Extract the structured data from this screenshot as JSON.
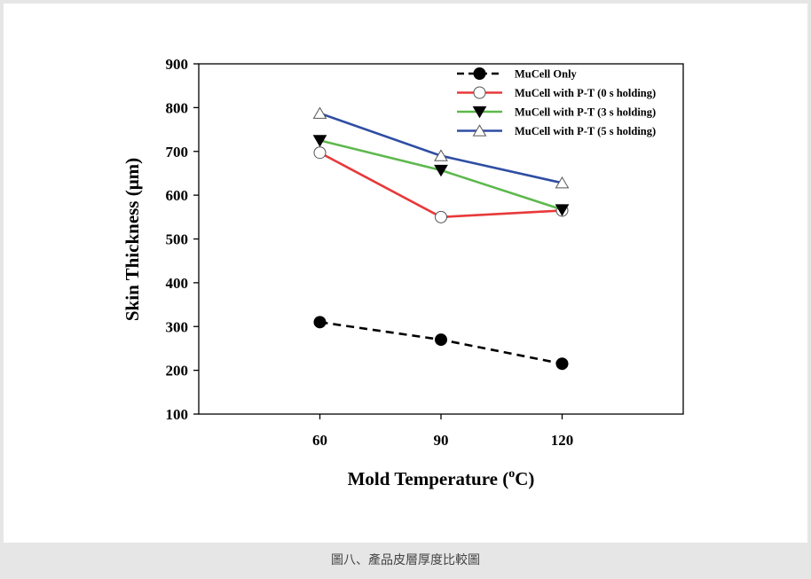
{
  "caption": "圖八、產品皮層厚度比較圖",
  "chart_data": {
    "type": "line",
    "title": "",
    "xlabel": "Mold Temperature",
    "xlabel_unit_prefix": "(",
    "xlabel_unit_sup": "o",
    "xlabel_unit_suffix": "C)",
    "ylabel": "Skin Thickness (μm)",
    "x": [
      60,
      90,
      120
    ],
    "xlim": [
      30,
      150
    ],
    "ylim": [
      100,
      900
    ],
    "yticks": [
      100,
      200,
      300,
      400,
      500,
      600,
      700,
      800,
      900
    ],
    "xticks": [
      60,
      90,
      120
    ],
    "grid": false,
    "legend_position": "top-right",
    "series": [
      {
        "name": "MuCell Only",
        "values": [
          310,
          270,
          215
        ],
        "color": "#000000",
        "marker": "filled-circle",
        "dashed": true
      },
      {
        "name": "MuCell with P-T (0 s holding)",
        "values": [
          697,
          550,
          565
        ],
        "color": "#e8393a",
        "marker": "open-circle",
        "dashed": false
      },
      {
        "name": "MuCell with P-T (3 s holding)",
        "values": [
          725,
          657,
          567
        ],
        "color": "#5db84d",
        "marker": "filled-triangle-down",
        "dashed": false
      },
      {
        "name": "MuCell with P-T (5 s holding)",
        "values": [
          787,
          690,
          628
        ],
        "color": "#2f4ea3",
        "marker": "open-triangle-up",
        "dashed": false
      }
    ]
  }
}
